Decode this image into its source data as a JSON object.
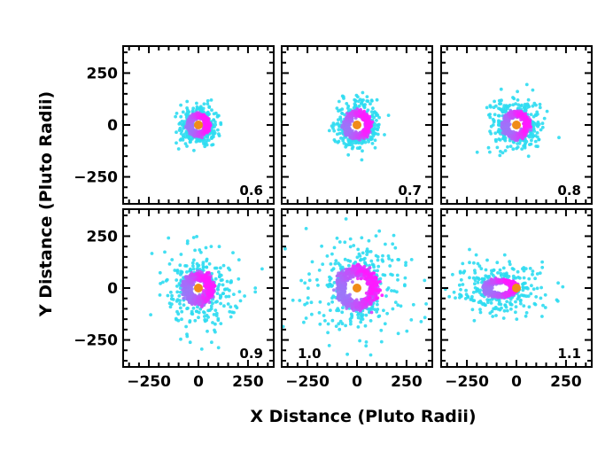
{
  "chart_data": {
    "type": "scatter",
    "xlabel": "X Distance (Pluto Radii)",
    "ylabel": "Y Distance (Pluto Radii)",
    "xlim": [
      -380,
      380
    ],
    "ylim": [
      -380,
      380
    ],
    "x_ticks": [
      -250,
      0,
      250
    ],
    "y_ticks": [
      -250,
      0,
      250
    ],
    "x_tick_labels": [
      "−250",
      "0",
      "250"
    ],
    "y_tick_labels": [
      "−250",
      "0",
      "250"
    ],
    "grid": false,
    "colors": {
      "outer": "#22e6f0",
      "inner": "#ff1aff",
      "center": "#f08c1a"
    },
    "center_point": {
      "x": 0,
      "y": 0
    },
    "panels": [
      {
        "label": "0.6",
        "ring_radius": 45,
        "ring_width": 14,
        "outer_extent": 120,
        "center_offset_x": 0
      },
      {
        "label": "0.7",
        "ring_radius": 55,
        "ring_width": 16,
        "outer_extent": 150,
        "center_offset_x": 0
      },
      {
        "label": "0.8",
        "ring_radius": 55,
        "ring_width": 16,
        "outer_extent": 170,
        "center_offset_x": 0
      },
      {
        "label": "0.9",
        "ring_radius": 60,
        "ring_width": 22,
        "outer_extent": 260,
        "center_offset_x": 0
      },
      {
        "label": "1.0",
        "ring_radius": 85,
        "ring_width": 28,
        "outer_extent": 320,
        "center_offset_x": 0
      },
      {
        "label": "1.1",
        "ring_radius": 70,
        "ring_width": 20,
        "outer_extent": 300,
        "center_offset_x": -80
      }
    ]
  }
}
